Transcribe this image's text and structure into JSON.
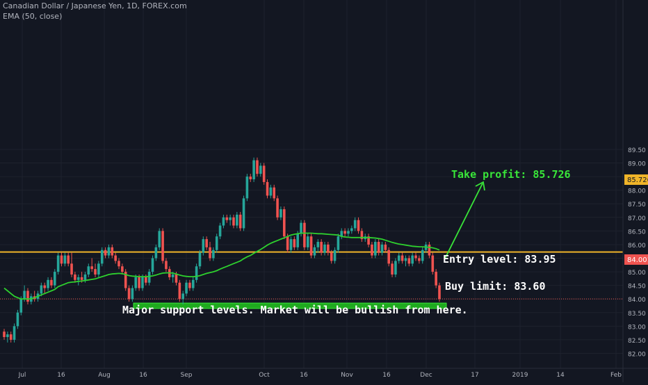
{
  "header": {
    "symbol_title": "Canadian Dollar / Japanese Yen, 1D, FOREX.com",
    "indicator_label": "EMA (50, close)"
  },
  "colors": {
    "background": "#131722",
    "grid": "#1e222d",
    "up_candle": "#26a69a",
    "down_candle": "#ef5350",
    "ema_line": "#2ed12e",
    "take_profit_line": "#f0b429",
    "support_zone": "#1faa1f",
    "annotation_green": "#39e639",
    "annotation_white": "#ffffff",
    "axis_text": "#b2b5be",
    "price_tag_red": "#ef5350"
  },
  "annotations": {
    "take_profit": "Take profit: 85.726",
    "entry": "Entry level: 83.95",
    "buy_limit": "Buy limit: 83.60",
    "support_note": "Major support levels. Market will be bullish from here."
  },
  "price_tags": {
    "take_profit_tag": "85.726",
    "last_price_tag": "84.001"
  },
  "chart_data": {
    "type": "candlestick",
    "ylim": [
      81.9,
      89.6
    ],
    "y_ticks": [
      "82.00",
      "82.50",
      "83.00",
      "83.50",
      "84.00",
      "84.50",
      "85.00",
      "85.50",
      "86.00",
      "86.50",
      "87.00",
      "87.50",
      "88.00",
      "88.50",
      "89.00",
      "89.50"
    ],
    "x_ticks": [
      "Jul",
      "16",
      "Aug",
      "16",
      "Sep",
      "Oct",
      "16",
      "Nov",
      "16",
      "Dec",
      "17",
      "2019",
      "14",
      "Feb"
    ],
    "take_profit_level": 85.726,
    "last_price": 84.001,
    "support_zone": [
      83.65,
      83.85
    ],
    "ohlc": [
      [
        82.8,
        82.9,
        82.5,
        82.6
      ],
      [
        82.6,
        82.8,
        82.4,
        82.7
      ],
      [
        82.7,
        82.8,
        82.4,
        82.5
      ],
      [
        82.5,
        83.1,
        82.4,
        83.0
      ],
      [
        83.0,
        83.6,
        82.9,
        83.5
      ],
      [
        83.5,
        84.1,
        83.4,
        84.0
      ],
      [
        84.0,
        84.5,
        83.9,
        84.3
      ],
      [
        84.3,
        84.4,
        83.8,
        83.9
      ],
      [
        83.9,
        84.2,
        83.8,
        84.1
      ],
      [
        84.1,
        84.3,
        83.9,
        84.0
      ],
      [
        84.0,
        84.3,
        83.9,
        84.2
      ],
      [
        84.2,
        84.6,
        84.1,
        84.5
      ],
      [
        84.5,
        84.6,
        84.2,
        84.4
      ],
      [
        84.4,
        84.8,
        84.3,
        84.7
      ],
      [
        84.7,
        84.8,
        84.4,
        84.5
      ],
      [
        84.5,
        85.1,
        84.4,
        85.0
      ],
      [
        85.0,
        85.7,
        84.9,
        85.6
      ],
      [
        85.6,
        85.7,
        85.2,
        85.3
      ],
      [
        85.3,
        85.7,
        85.2,
        85.6
      ],
      [
        85.6,
        85.7,
        85.2,
        85.3
      ],
      [
        85.3,
        85.7,
        84.8,
        84.9
      ],
      [
        84.9,
        85.0,
        84.6,
        84.7
      ],
      [
        84.7,
        84.9,
        84.5,
        84.8
      ],
      [
        84.8,
        85.0,
        84.6,
        84.7
      ],
      [
        84.7,
        85.0,
        84.6,
        84.9
      ],
      [
        84.9,
        85.3,
        84.8,
        85.2
      ],
      [
        85.2,
        85.5,
        85.0,
        85.1
      ],
      [
        85.1,
        85.3,
        84.8,
        84.9
      ],
      [
        84.9,
        85.4,
        84.8,
        85.3
      ],
      [
        85.3,
        85.9,
        85.2,
        85.8
      ],
      [
        85.8,
        85.9,
        85.5,
        85.6
      ],
      [
        85.6,
        86.0,
        85.5,
        85.9
      ],
      [
        85.9,
        86.0,
        85.5,
        85.6
      ],
      [
        85.6,
        85.7,
        85.3,
        85.4
      ],
      [
        85.4,
        85.5,
        85.1,
        85.2
      ],
      [
        85.2,
        85.3,
        84.9,
        85.0
      ],
      [
        85.0,
        85.1,
        84.3,
        84.4
      ],
      [
        84.4,
        84.5,
        83.9,
        84.0
      ],
      [
        84.0,
        84.5,
        83.9,
        84.4
      ],
      [
        84.4,
        84.9,
        84.3,
        84.8
      ],
      [
        84.8,
        84.9,
        84.3,
        84.4
      ],
      [
        84.4,
        84.9,
        84.3,
        84.8
      ],
      [
        84.8,
        84.9,
        84.5,
        84.6
      ],
      [
        84.6,
        85.1,
        84.5,
        85.0
      ],
      [
        85.0,
        85.6,
        84.9,
        85.5
      ],
      [
        85.5,
        86.0,
        85.4,
        85.9
      ],
      [
        85.9,
        86.6,
        85.8,
        86.5
      ],
      [
        86.5,
        86.6,
        85.3,
        85.4
      ],
      [
        85.4,
        85.5,
        85.0,
        85.1
      ],
      [
        85.1,
        85.2,
        84.7,
        84.8
      ],
      [
        84.8,
        85.0,
        84.6,
        84.9
      ],
      [
        84.9,
        85.0,
        84.5,
        84.6
      ],
      [
        84.6,
        84.7,
        83.9,
        84.0
      ],
      [
        84.0,
        84.3,
        83.8,
        84.2
      ],
      [
        84.2,
        84.7,
        84.1,
        84.6
      ],
      [
        84.6,
        84.7,
        84.3,
        84.4
      ],
      [
        84.4,
        84.8,
        84.3,
        84.7
      ],
      [
        84.7,
        85.3,
        84.6,
        85.2
      ],
      [
        85.2,
        85.8,
        85.1,
        85.7
      ],
      [
        85.7,
        86.3,
        85.6,
        86.2
      ],
      [
        86.2,
        86.3,
        85.8,
        85.9
      ],
      [
        85.9,
        86.1,
        85.4,
        85.5
      ],
      [
        85.5,
        85.9,
        85.4,
        85.8
      ],
      [
        85.8,
        86.4,
        85.7,
        86.3
      ],
      [
        86.3,
        86.8,
        86.2,
        86.7
      ],
      [
        86.7,
        87.1,
        86.6,
        87.0
      ],
      [
        87.0,
        87.1,
        86.8,
        86.9
      ],
      [
        86.9,
        87.1,
        86.7,
        87.0
      ],
      [
        87.0,
        87.1,
        86.6,
        86.7
      ],
      [
        86.7,
        87.2,
        86.6,
        87.1
      ],
      [
        87.1,
        87.2,
        86.5,
        86.6
      ],
      [
        86.6,
        87.8,
        86.5,
        87.7
      ],
      [
        87.7,
        88.6,
        87.6,
        88.5
      ],
      [
        88.5,
        88.6,
        88.3,
        88.4
      ],
      [
        88.4,
        89.2,
        88.3,
        89.1
      ],
      [
        89.1,
        89.2,
        88.5,
        88.6
      ],
      [
        88.6,
        89.0,
        88.5,
        88.9
      ],
      [
        88.9,
        89.0,
        88.2,
        88.3
      ],
      [
        88.3,
        88.4,
        87.7,
        87.8
      ],
      [
        87.8,
        88.2,
        87.7,
        88.1
      ],
      [
        88.1,
        88.2,
        87.6,
        87.7
      ],
      [
        87.7,
        87.8,
        86.9,
        87.0
      ],
      [
        87.0,
        87.4,
        86.9,
        87.3
      ],
      [
        87.3,
        87.4,
        86.2,
        86.3
      ],
      [
        86.3,
        86.4,
        85.7,
        85.8
      ],
      [
        85.8,
        86.3,
        85.7,
        86.2
      ],
      [
        86.2,
        86.3,
        85.8,
        85.9
      ],
      [
        85.9,
        86.5,
        85.8,
        86.4
      ],
      [
        86.4,
        86.9,
        86.3,
        86.8
      ],
      [
        86.8,
        86.9,
        85.8,
        85.9
      ],
      [
        85.9,
        86.4,
        85.8,
        86.3
      ],
      [
        86.3,
        86.4,
        85.5,
        85.6
      ],
      [
        85.6,
        86.0,
        85.5,
        85.9
      ],
      [
        85.9,
        86.2,
        85.7,
        86.1
      ],
      [
        86.1,
        86.2,
        85.6,
        85.7
      ],
      [
        85.7,
        86.1,
        85.6,
        86.0
      ],
      [
        86.0,
        86.1,
        85.6,
        85.7
      ],
      [
        85.7,
        85.8,
        85.3,
        85.4
      ],
      [
        85.4,
        85.9,
        85.3,
        85.8
      ],
      [
        85.8,
        86.4,
        85.7,
        86.3
      ],
      [
        86.3,
        86.6,
        86.2,
        86.5
      ],
      [
        86.5,
        86.6,
        86.3,
        86.4
      ],
      [
        86.4,
        86.6,
        86.3,
        86.5
      ],
      [
        86.5,
        86.7,
        86.4,
        86.6
      ],
      [
        86.6,
        87.0,
        86.5,
        86.9
      ],
      [
        86.9,
        87.0,
        86.4,
        86.5
      ],
      [
        86.5,
        86.6,
        86.1,
        86.2
      ],
      [
        86.2,
        86.4,
        86.1,
        86.3
      ],
      [
        86.3,
        86.4,
        85.9,
        86.0
      ],
      [
        86.0,
        86.1,
        85.5,
        85.6
      ],
      [
        85.6,
        86.2,
        85.5,
        86.1
      ],
      [
        86.1,
        86.2,
        85.6,
        85.7
      ],
      [
        85.7,
        86.1,
        85.6,
        86.0
      ],
      [
        86.0,
        86.1,
        85.7,
        85.8
      ],
      [
        85.8,
        85.9,
        85.2,
        85.3
      ],
      [
        85.3,
        85.4,
        84.8,
        84.9
      ],
      [
        84.9,
        85.5,
        84.8,
        85.4
      ],
      [
        85.4,
        85.7,
        85.3,
        85.6
      ],
      [
        85.6,
        85.7,
        85.3,
        85.4
      ],
      [
        85.4,
        85.6,
        85.2,
        85.5
      ],
      [
        85.5,
        85.6,
        85.2,
        85.3
      ],
      [
        85.3,
        85.7,
        85.2,
        85.6
      ],
      [
        85.6,
        85.7,
        85.4,
        85.5
      ],
      [
        85.5,
        85.6,
        85.3,
        85.4
      ],
      [
        85.4,
        85.9,
        85.3,
        85.8
      ],
      [
        85.8,
        86.1,
        85.7,
        86.0
      ],
      [
        86.0,
        86.1,
        85.5,
        85.6
      ],
      [
        85.6,
        85.7,
        84.9,
        85.0
      ],
      [
        85.0,
        85.1,
        84.4,
        84.5
      ],
      [
        84.5,
        84.6,
        83.9,
        84.0
      ]
    ],
    "ema": [
      84.4,
      84.3,
      84.2,
      84.1,
      84.05,
      84.0,
      84.0,
      84.0,
      84.0,
      84.05,
      84.1,
      84.15,
      84.2,
      84.25,
      84.3,
      84.35,
      84.45,
      84.5,
      84.55,
      84.6,
      84.62,
      84.63,
      84.65,
      84.66,
      84.68,
      84.7,
      84.72,
      84.74,
      84.78,
      84.82,
      84.86,
      84.9,
      84.92,
      84.93,
      84.94,
      84.93,
      84.9,
      84.86,
      84.84,
      84.83,
      84.82,
      84.82,
      84.82,
      84.83,
      84.85,
      84.88,
      84.92,
      84.95,
      84.96,
      84.96,
      84.95,
      84.92,
      84.88,
      84.85,
      84.83,
      84.82,
      84.82,
      84.83,
      84.86,
      84.9,
      84.94,
      84.97,
      85.0,
      85.04,
      85.1,
      85.15,
      85.2,
      85.25,
      85.3,
      85.35,
      85.4,
      85.48,
      85.55,
      85.6,
      85.68,
      85.75,
      85.82,
      85.9,
      85.98,
      86.05,
      86.1,
      86.15,
      86.2,
      86.25,
      86.3,
      86.35,
      86.38,
      86.4,
      86.42,
      86.42,
      86.42,
      86.42,
      86.41,
      86.4,
      86.4,
      86.39,
      86.38,
      86.37,
      86.36,
      86.35,
      86.3,
      86.28,
      86.27,
      86.26,
      86.26,
      86.26,
      86.26,
      86.26,
      86.26,
      86.25,
      86.24,
      86.22,
      86.2,
      86.16,
      86.12,
      86.08,
      86.05,
      86.02,
      86.0,
      85.98,
      85.96,
      85.94,
      85.93,
      85.92,
      85.92,
      85.91,
      85.9,
      85.88,
      85.85,
      85.8
    ]
  }
}
